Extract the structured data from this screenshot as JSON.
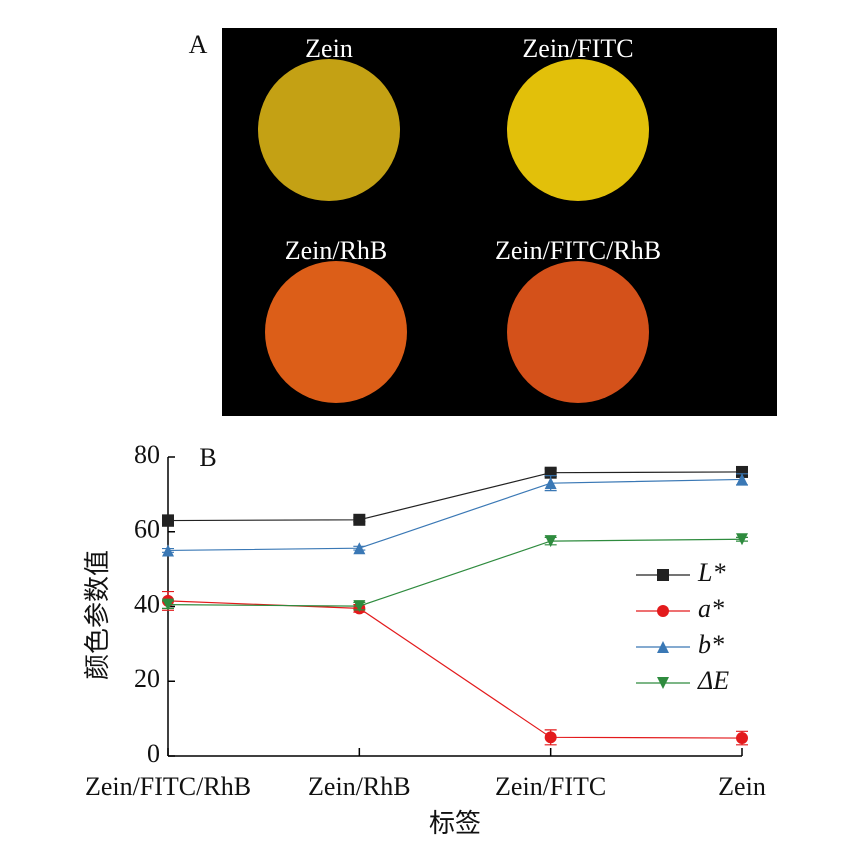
{
  "panel_a": {
    "label": "A",
    "samples": [
      {
        "name": "Zein",
        "color": "#c4a114"
      },
      {
        "name": "Zein/FITC",
        "color": "#e2c00a"
      },
      {
        "name": "Zein/RhB",
        "color": "#dc5e18"
      },
      {
        "name": "Zein/FITC/RhB",
        "color": "#d4511a"
      }
    ]
  },
  "chart_data": {
    "type": "line",
    "panel_label": "B",
    "x_label": "标签",
    "y_label": "颜色参数值",
    "categories": [
      "Zein/FITC/RhB",
      "Zein/RhB",
      "Zein/FITC",
      "Zein"
    ],
    "ylim": [
      0,
      80
    ],
    "yticks": [
      0,
      20,
      40,
      60,
      80
    ],
    "legend": "right",
    "series": [
      {
        "name": "L*",
        "color": "#222222",
        "marker": "square",
        "values": [
          63,
          63.2,
          75.8,
          76
        ],
        "errors": [
          1.5,
          0.5,
          1,
          0.5
        ]
      },
      {
        "name": "a*",
        "color": "#e31a1c",
        "marker": "circle",
        "values": [
          41.5,
          39.5,
          5,
          4.8
        ],
        "errors": [
          2.5,
          1,
          2,
          1.8
        ]
      },
      {
        "name": "b*",
        "color": "#3a78b5",
        "marker": "triangle-up",
        "values": [
          55,
          55.6,
          73,
          74
        ],
        "errors": [
          0.5,
          0.5,
          2,
          1.5
        ]
      },
      {
        "name": "ΔE",
        "color": "#2e8b3e",
        "marker": "triangle-down",
        "values": [
          40.5,
          40.1,
          57.5,
          58
        ],
        "errors": [
          1,
          1,
          1,
          0.5
        ]
      }
    ]
  }
}
